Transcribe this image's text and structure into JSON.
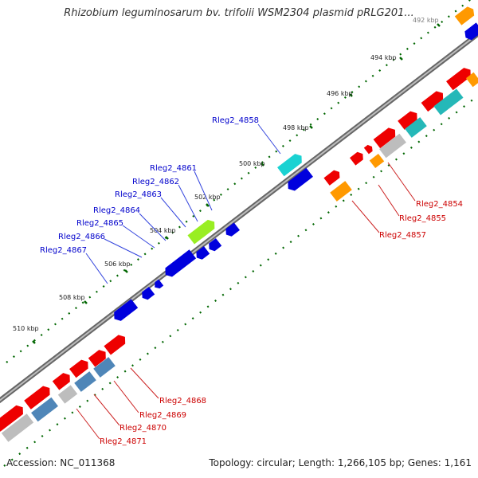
{
  "title": "Rhizobium leguminosarum bv. trifolii WSM2304 plasmid pRLG201...",
  "footer": {
    "accession": "Accession: NC_011368",
    "summary": "Topology: circular; Length: 1,266,105 bp; Genes: 1,161"
  },
  "colors": {
    "backbone": "#8a8a8a",
    "forward_red": "#ee0000",
    "blue": "#0000dd",
    "cyan": "#1ad2d2",
    "teal": "#25b8b8",
    "orange": "#ff9900",
    "lime": "#99ee22",
    "gray": "#bdbdbd",
    "steel": "#4f86b8",
    "label_blue": "#0000cc",
    "label_red": "#cc0000",
    "tick_green": "#006600"
  },
  "ticks": [
    "510 kbp",
    "508 kbp",
    "506 kbp",
    "504 kbp",
    "502 kbp",
    "500 kbp",
    "498 kbp",
    "496 kbp",
    "494 kbp",
    "492 kbp"
  ],
  "gene_labels_blue": [
    "Rleg2_4858",
    "Rleg2_4861",
    "Rleg2_4862",
    "Rleg2_4863",
    "Rleg2_4864",
    "Rleg2_4865",
    "Rleg2_4866",
    "Rleg2_4867"
  ],
  "gene_labels_red": [
    "Rleg2_4854",
    "Rleg2_4855",
    "Rleg2_4857",
    "Rleg2_4868",
    "Rleg2_4869",
    "Rleg2_4870",
    "Rleg2_4871"
  ]
}
